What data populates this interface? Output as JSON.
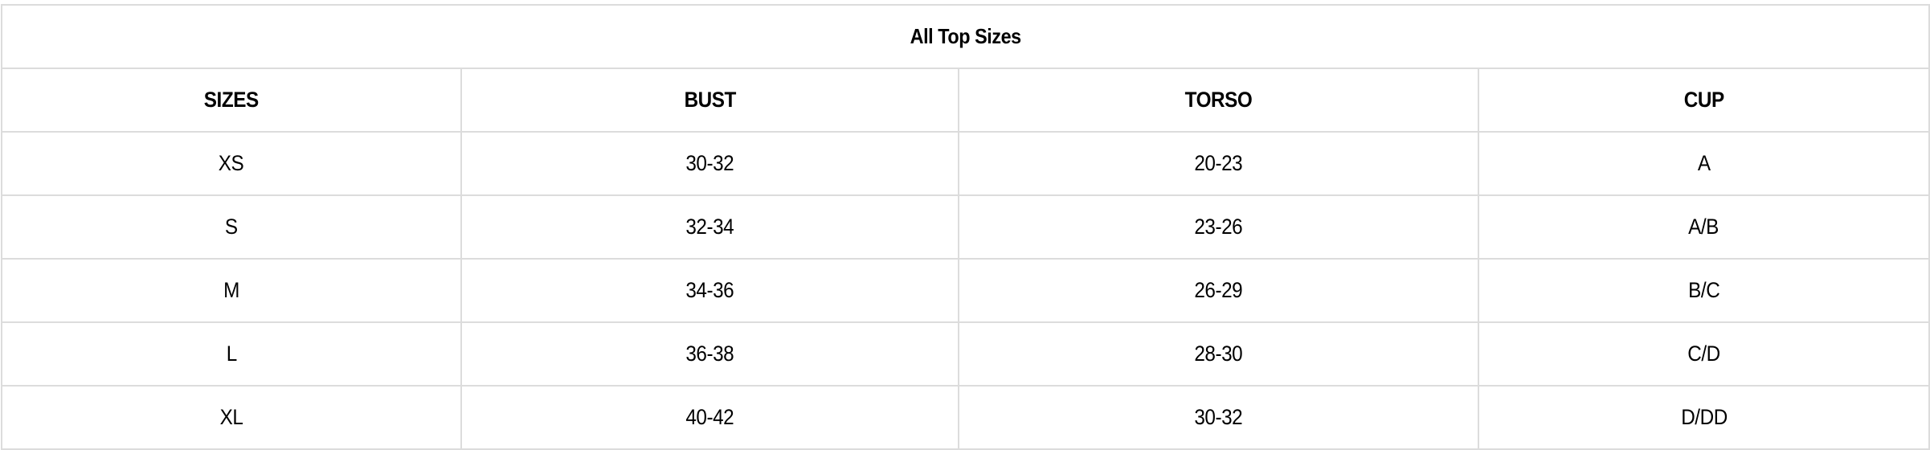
{
  "table": {
    "title": "All Top Sizes",
    "columns": [
      "SIZES",
      "BUST",
      "TORSO",
      "CUP"
    ],
    "rows": [
      [
        "XS",
        "30-32",
        "20-23",
        "A"
      ],
      [
        "S",
        "32-34",
        "23-26",
        "A/B"
      ],
      [
        "M",
        "34-36",
        "26-29",
        "B/C"
      ],
      [
        "L",
        "36-38",
        "28-30",
        "C/D"
      ],
      [
        "XL",
        "40-42",
        "30-32",
        "D/DD"
      ]
    ]
  },
  "colors": {
    "border": "#dcdcdc",
    "text": "#000000"
  }
}
